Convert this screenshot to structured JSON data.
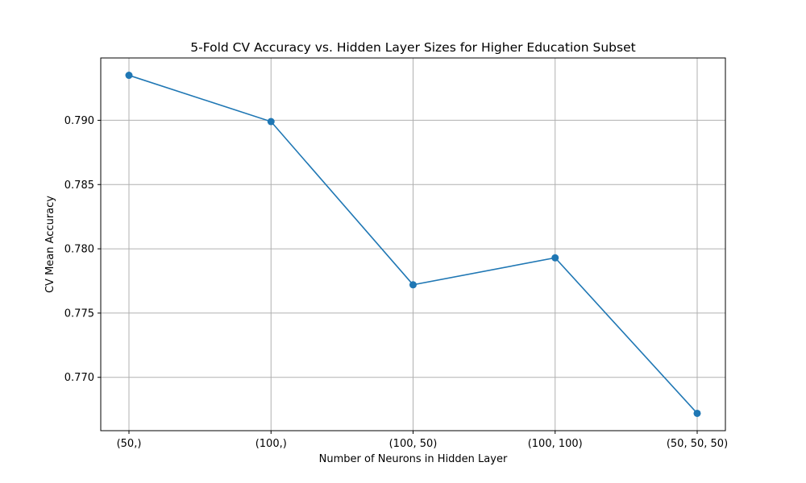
{
  "chart_data": {
    "type": "line",
    "title": "5-Fold CV Accuracy vs. Hidden Layer Sizes for Higher Education Subset",
    "xlabel": "Number of Neurons in Hidden Layer",
    "ylabel": "CV Mean Accuracy",
    "categories": [
      "(50,)",
      "(100,)",
      "(100, 50)",
      "(100, 100)",
      "(50, 50, 50)"
    ],
    "values": [
      0.7935,
      0.7899,
      0.7772,
      0.7793,
      0.7672
    ],
    "yticks": [
      0.77,
      0.775,
      0.78,
      0.785,
      0.79
    ],
    "ytick_labels": [
      "0.770",
      "0.775",
      "0.780",
      "0.785",
      "0.790"
    ],
    "ylim": [
      0.76585,
      0.79485
    ],
    "grid": true,
    "line_color": "#1f77b4",
    "marker": "circle"
  }
}
